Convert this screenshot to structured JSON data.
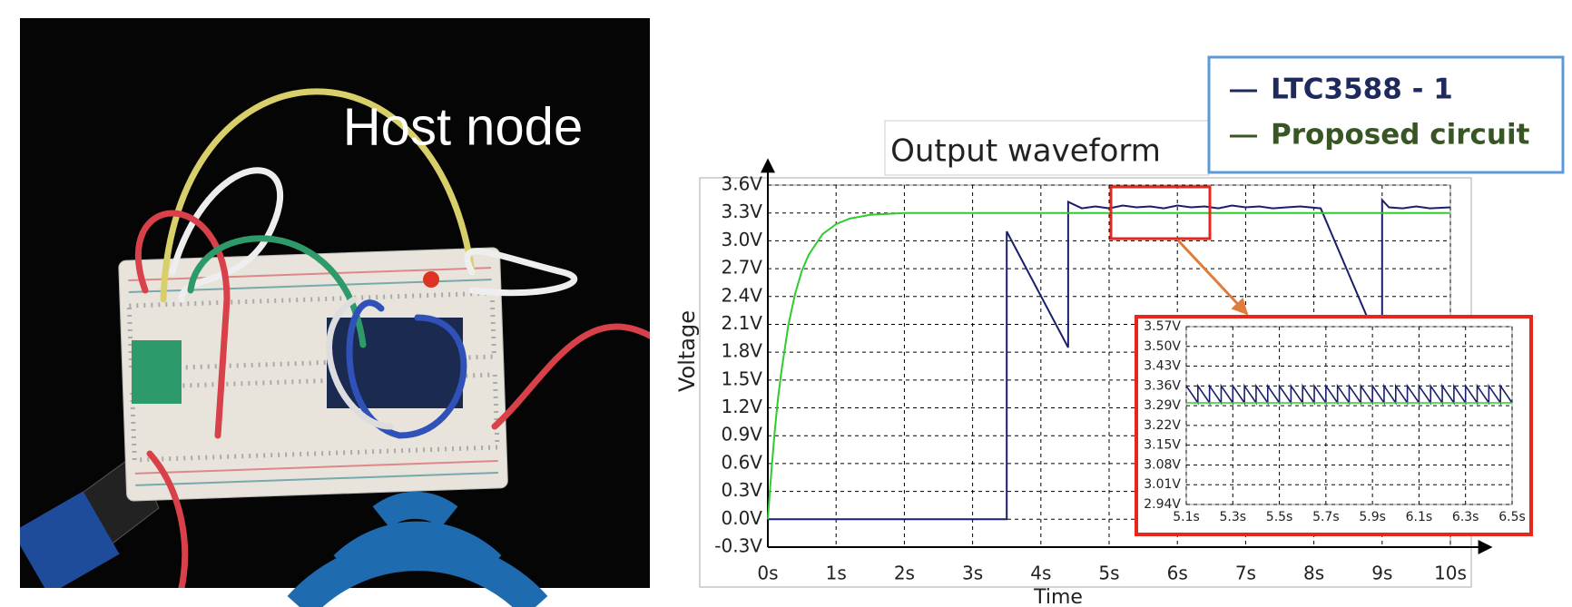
{
  "photo": {
    "caption": "Host node"
  },
  "chart_data": [
    {
      "type": "line",
      "title": "Output waveform",
      "x_label": "Time",
      "y_label": "Voltage",
      "xlim": [
        0,
        10
      ],
      "ylim": [
        -0.3,
        3.6
      ],
      "grid": true,
      "xticks": [
        {
          "value": 0,
          "label": "0s"
        },
        {
          "value": 1,
          "label": "1s"
        },
        {
          "value": 2,
          "label": "2s"
        },
        {
          "value": 3,
          "label": "3s"
        },
        {
          "value": 4,
          "label": "4s"
        },
        {
          "value": 5,
          "label": "5s"
        },
        {
          "value": 6,
          "label": "6s"
        },
        {
          "value": 7,
          "label": "7s"
        },
        {
          "value": 8,
          "label": "8s"
        },
        {
          "value": 9,
          "label": "9s"
        },
        {
          "value": 10,
          "label": "10s"
        }
      ],
      "yticks": [
        {
          "value": -0.3,
          "label": "-0.3V"
        },
        {
          "value": 0,
          "label": "0.0V"
        },
        {
          "value": 0.3,
          "label": "0.3V"
        },
        {
          "value": 0.6,
          "label": "0.6V"
        },
        {
          "value": 0.9,
          "label": "0.9V"
        },
        {
          "value": 1.2,
          "label": "1.2V"
        },
        {
          "value": 1.5,
          "label": "1.5V"
        },
        {
          "value": 1.8,
          "label": "1.8V"
        },
        {
          "value": 2.1,
          "label": "2.1V"
        },
        {
          "value": 2.4,
          "label": "2.4V"
        },
        {
          "value": 2.7,
          "label": "2.7V"
        },
        {
          "value": 3.0,
          "label": "3.0V"
        },
        {
          "value": 3.3,
          "label": "3.3V"
        },
        {
          "value": 3.6,
          "label": "3.6V"
        }
      ],
      "series": [
        {
          "name": "LTC3588 - 1",
          "color": "#1b1f6b",
          "x": [
            0,
            3.5,
            3.5,
            4.4,
            4.4,
            4.6,
            4.8,
            5.0,
            5.2,
            5.4,
            5.6,
            5.8,
            6.0,
            6.2,
            6.4,
            6.6,
            6.8,
            7.0,
            7.2,
            7.4,
            7.6,
            7.8,
            8.1,
            9.0,
            9.0,
            9.1,
            9.3,
            9.5,
            9.7,
            10
          ],
          "values": [
            0,
            0,
            3.1,
            1.85,
            3.42,
            3.35,
            3.37,
            3.35,
            3.38,
            3.36,
            3.37,
            3.35,
            3.38,
            3.36,
            3.37,
            3.35,
            3.38,
            3.36,
            3.37,
            3.35,
            3.36,
            3.37,
            3.35,
            1.8,
            3.44,
            3.36,
            3.35,
            3.37,
            3.35,
            3.36
          ]
        },
        {
          "name": "Proposed circuit",
          "color": "#2ecc2e",
          "x": [
            0,
            0.05,
            0.1,
            0.15,
            0.2,
            0.3,
            0.4,
            0.5,
            0.6,
            0.8,
            1.0,
            1.2,
            1.5,
            2.0,
            10
          ],
          "values": [
            0,
            0.5,
            0.94,
            1.31,
            1.6,
            2.09,
            2.43,
            2.68,
            2.85,
            3.07,
            3.18,
            3.24,
            3.28,
            3.3,
            3.3
          ]
        }
      ]
    },
    {
      "type": "line",
      "xlim": [
        5.1,
        6.5
      ],
      "ylim": [
        2.94,
        3.57
      ],
      "grid": true,
      "xticks": [
        {
          "value": 5.1,
          "label": "5.1s"
        },
        {
          "value": 5.3,
          "label": "5.3s"
        },
        {
          "value": 5.5,
          "label": "5.5s"
        },
        {
          "value": 5.7,
          "label": "5.7s"
        },
        {
          "value": 5.9,
          "label": "5.9s"
        },
        {
          "value": 6.1,
          "label": "6.1s"
        },
        {
          "value": 6.3,
          "label": "6.3s"
        },
        {
          "value": 6.5,
          "label": "6.5s"
        }
      ],
      "yticks": [
        {
          "value": 2.94,
          "label": "2.94V"
        },
        {
          "value": 3.01,
          "label": "3.01V"
        },
        {
          "value": 3.08,
          "label": "3.08V"
        },
        {
          "value": 3.15,
          "label": "3.15V"
        },
        {
          "value": 3.22,
          "label": "3.22V"
        },
        {
          "value": 3.29,
          "label": "3.29V"
        },
        {
          "value": 3.36,
          "label": "3.36V"
        },
        {
          "value": 3.43,
          "label": "3.43V"
        },
        {
          "value": 3.5,
          "label": "3.50V"
        },
        {
          "value": 3.57,
          "label": "3.57V"
        }
      ],
      "series": [
        {
          "color": "#1b1f6b",
          "x": [
            5.1,
            5.15,
            5.15,
            5.2,
            5.2,
            5.25,
            5.25,
            5.3,
            5.3,
            5.35,
            5.35,
            5.4,
            5.4,
            5.45,
            5.45,
            5.5,
            5.5,
            5.55,
            5.55,
            5.6,
            5.6,
            5.65,
            5.65,
            5.7,
            5.7,
            5.75,
            5.75,
            5.8,
            5.8,
            5.85,
            5.85,
            5.9,
            5.9,
            5.95,
            5.95,
            6.0,
            6.0,
            6.05,
            6.05,
            6.1,
            6.1,
            6.15,
            6.15,
            6.2,
            6.2,
            6.25,
            6.25,
            6.3,
            6.3,
            6.35,
            6.35,
            6.4,
            6.4,
            6.45,
            6.45,
            6.5
          ],
          "values": [
            3.36,
            3.3,
            3.36,
            3.3,
            3.36,
            3.3,
            3.36,
            3.3,
            3.36,
            3.3,
            3.36,
            3.3,
            3.36,
            3.3,
            3.36,
            3.3,
            3.36,
            3.3,
            3.36,
            3.3,
            3.36,
            3.3,
            3.36,
            3.3,
            3.36,
            3.3,
            3.36,
            3.3,
            3.36,
            3.3,
            3.36,
            3.3,
            3.36,
            3.3,
            3.36,
            3.3,
            3.36,
            3.3,
            3.36,
            3.3,
            3.36,
            3.3,
            3.36,
            3.3,
            3.36,
            3.3,
            3.36,
            3.3,
            3.36,
            3.3,
            3.36,
            3.3,
            3.36,
            3.3,
            3.36,
            3.3
          ]
        },
        {
          "color": "#2ecc2e",
          "x": [
            5.1,
            6.5
          ],
          "values": [
            3.3,
            3.3
          ]
        }
      ]
    }
  ]
}
